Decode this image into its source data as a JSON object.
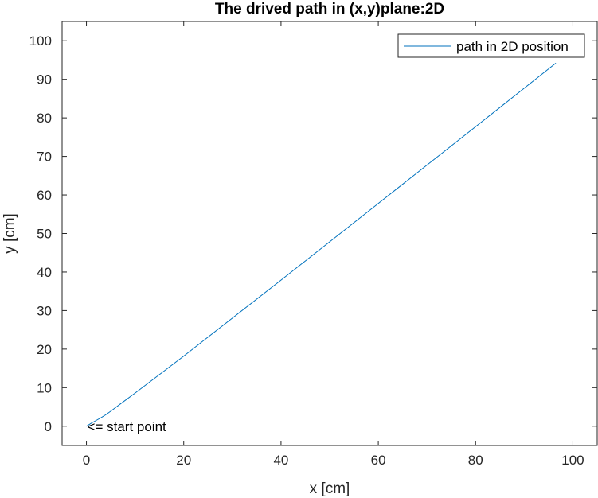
{
  "chart_data": {
    "type": "line",
    "title": "The drived path in (x,y)plane:2D",
    "xlabel": "x [cm]",
    "ylabel": "y [cm]",
    "xlim": [
      -5,
      105
    ],
    "ylim": [
      -5,
      105
    ],
    "xticks": [
      0,
      20,
      40,
      60,
      80,
      100
    ],
    "yticks": [
      0,
      10,
      20,
      30,
      40,
      50,
      60,
      70,
      80,
      90,
      100
    ],
    "grid": false,
    "legend": {
      "position": "top-right",
      "entries": [
        "path in 2D position"
      ]
    },
    "series": [
      {
        "name": "path in 2D position",
        "color": "#0072BD",
        "x": [
          0,
          1,
          2,
          3,
          4,
          5,
          7,
          10,
          20,
          40,
          60,
          80,
          96.5
        ],
        "y": [
          0,
          0.8,
          1.5,
          2.2,
          3.0,
          3.9,
          5.8,
          8.6,
          18.2,
          37.9,
          57.8,
          77.7,
          94.2
        ]
      }
    ],
    "annotations": [
      {
        "text": "<= start point",
        "x": 0,
        "y": 0
      }
    ]
  }
}
